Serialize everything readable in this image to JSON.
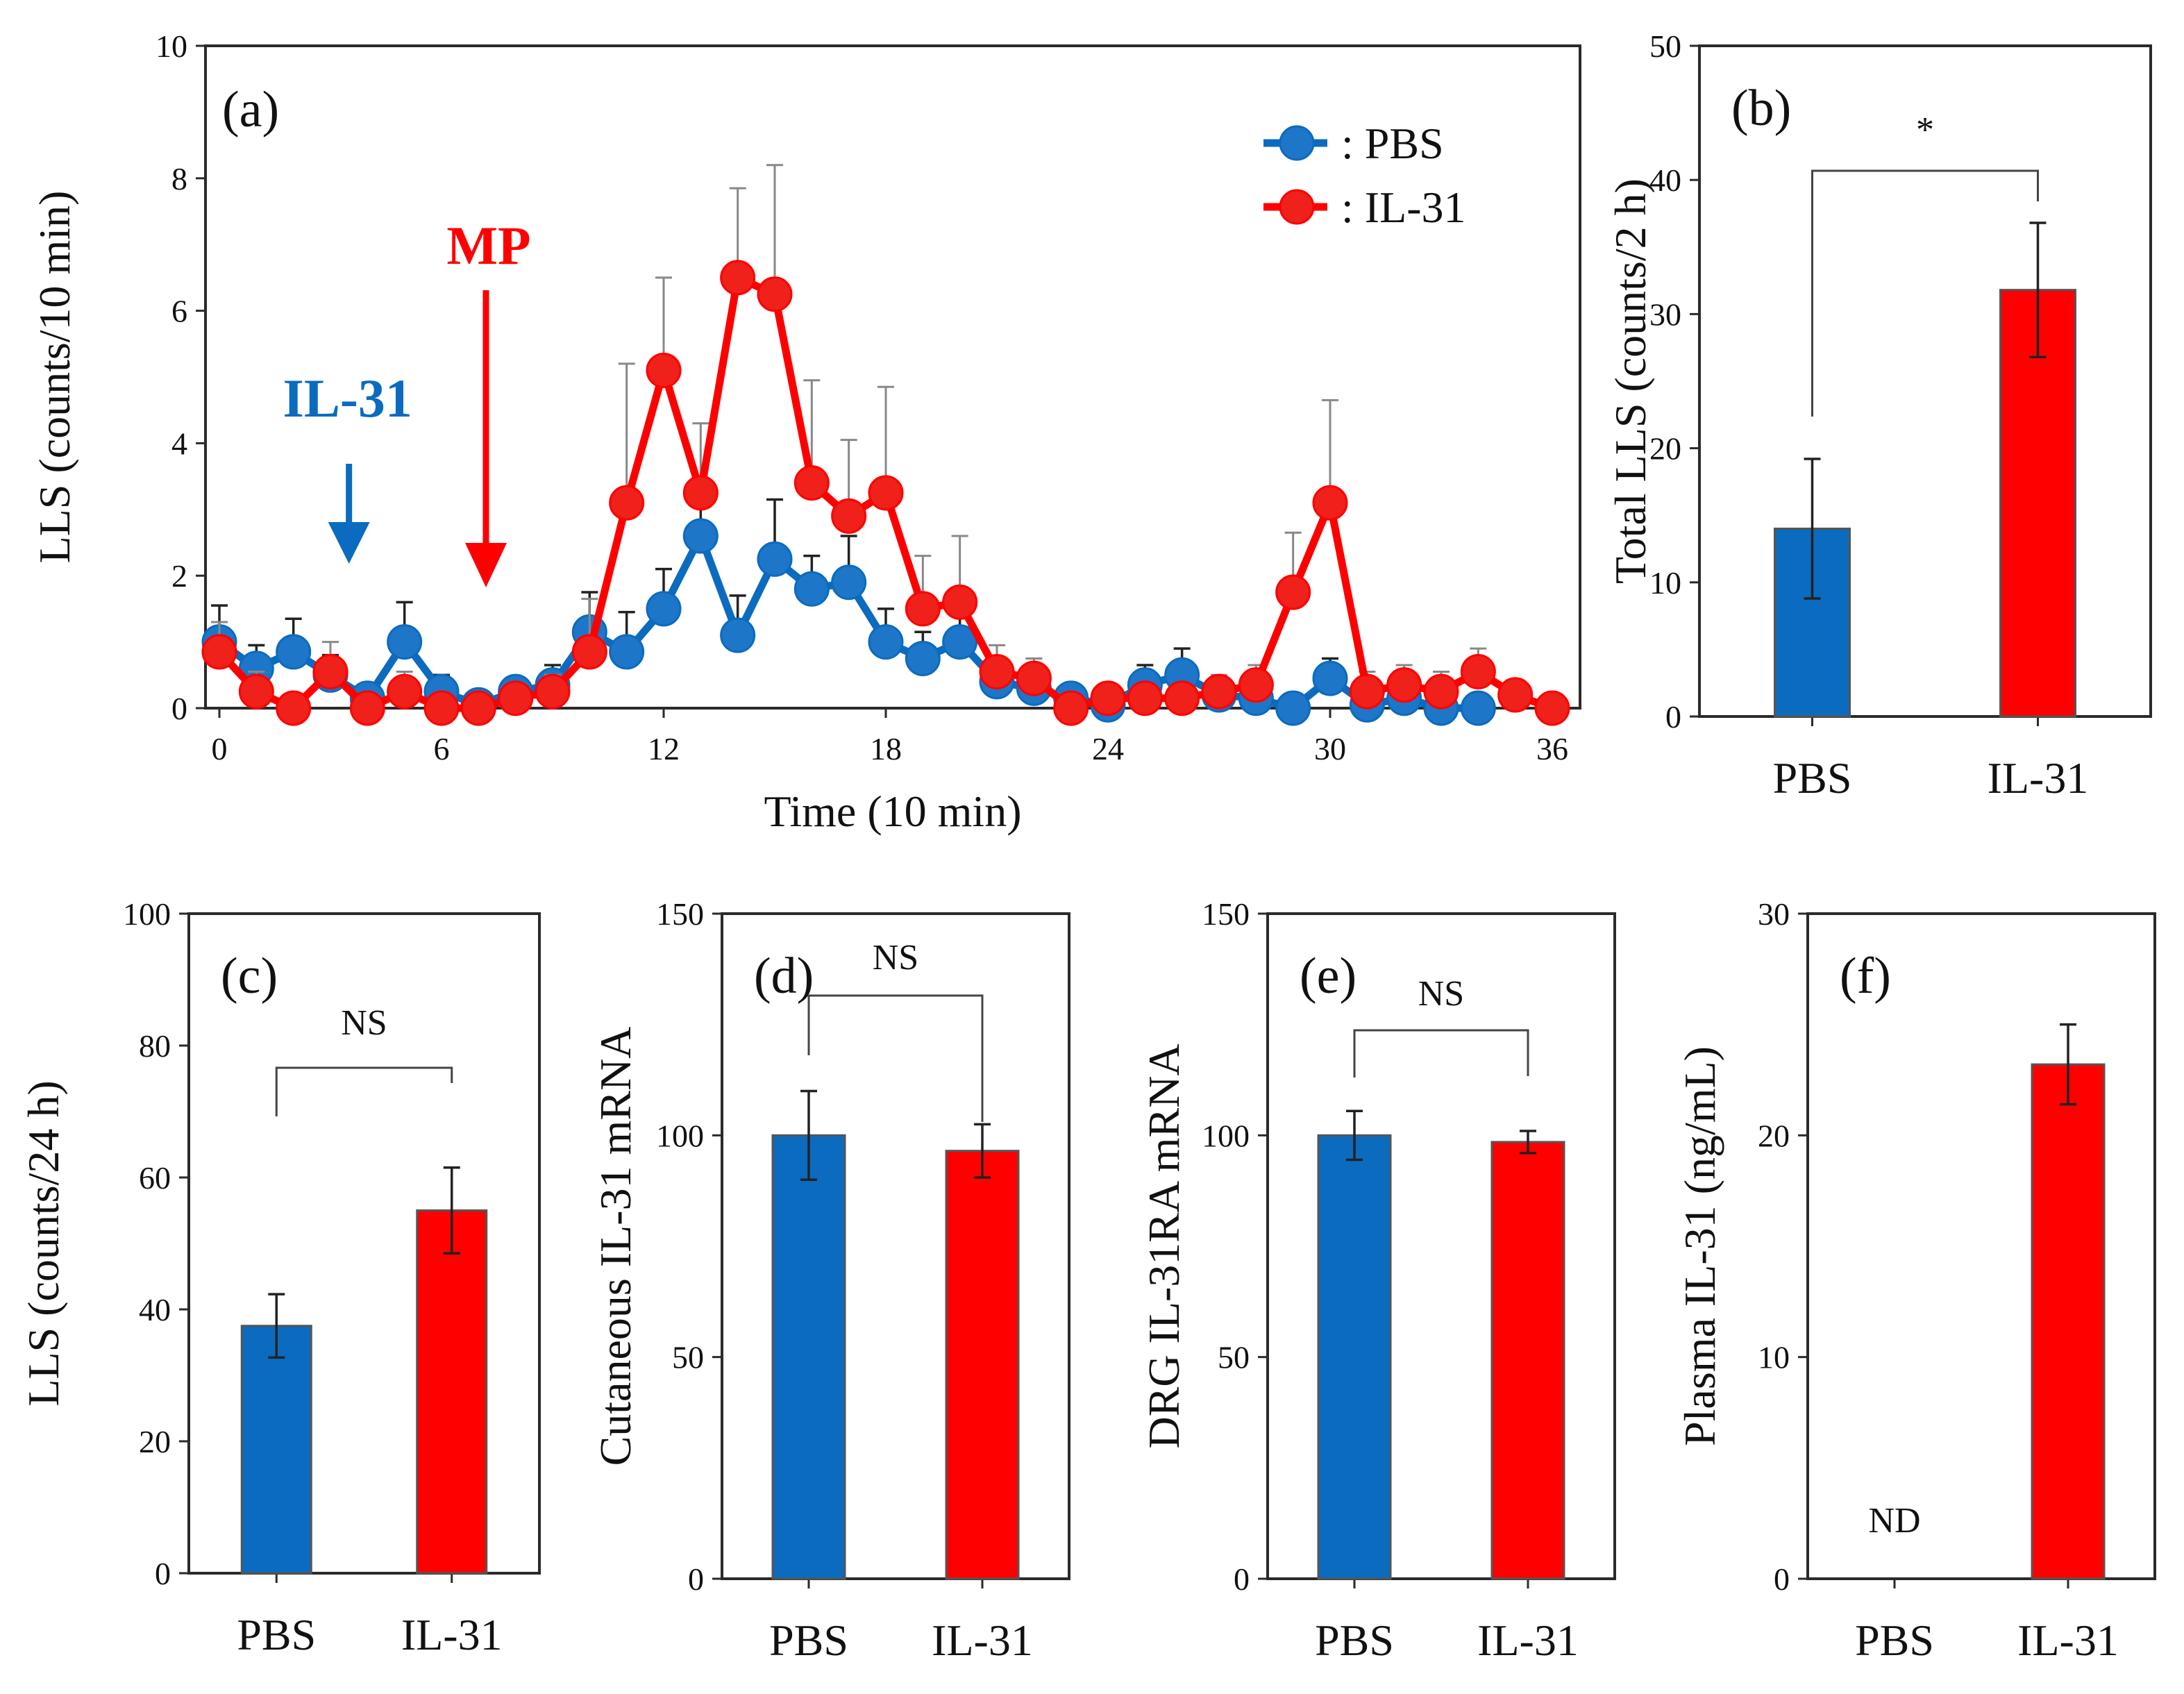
{
  "colors": {
    "pbs": "#0b6bbf",
    "il31": "#ff0000",
    "pbs_marker": "#1d76c8",
    "il31_marker": "#f0201a"
  },
  "chart_data": [
    {
      "id": "a",
      "type": "line",
      "panel_label": "(a)",
      "xlabel": "Time (10 min)",
      "ylabel": "LLS (counts/10 min)",
      "xlim": [
        0,
        36
      ],
      "ylim": [
        0,
        10
      ],
      "xticks": [
        0,
        6,
        12,
        18,
        24,
        30,
        36
      ],
      "yticks": [
        0,
        2,
        4,
        6,
        8,
        10
      ],
      "legend": {
        "placement": "top-right",
        "entries": [
          ": PBS",
          ": IL-31"
        ]
      },
      "annotations": [
        {
          "text": "IL-31",
          "x": 3.5,
          "color": "#0b6bbf"
        },
        {
          "text": "MP",
          "x": 7.2,
          "color": "#ff0000"
        }
      ],
      "series": [
        {
          "name": "PBS",
          "x": [
            0,
            1,
            2,
            3,
            4,
            5,
            6,
            7,
            8,
            9,
            10,
            11,
            12,
            13,
            14,
            15,
            16,
            17,
            18,
            19,
            20,
            21,
            22,
            23,
            24,
            25,
            26,
            27,
            28,
            29,
            30,
            31,
            32,
            33,
            34
          ],
          "values": [
            1.0,
            0.6,
            0.85,
            0.5,
            0.15,
            1.0,
            0.25,
            0.05,
            0.25,
            0.35,
            1.15,
            0.85,
            1.5,
            2.6,
            1.1,
            2.25,
            1.8,
            1.9,
            1.0,
            0.75,
            1.0,
            0.4,
            0.3,
            0.15,
            0.05,
            0.35,
            0.5,
            0.2,
            0.15,
            0.0,
            0.45,
            0.05,
            0.15,
            0.0,
            0.0
          ],
          "errors": [
            0.55,
            0.35,
            0.5,
            0.3,
            0.2,
            0.6,
            0.25,
            0.1,
            0.2,
            0.3,
            0.6,
            0.6,
            0.6,
            0.8,
            0.6,
            0.9,
            0.5,
            0.7,
            0.5,
            0.4,
            0.5,
            0.3,
            0.25,
            0.15,
            0.1,
            0.3,
            0.4,
            0.2,
            0.2,
            0.05,
            0.3,
            0.1,
            0.2,
            0.05,
            0.05
          ]
        },
        {
          "name": "IL-31",
          "x": [
            0,
            1,
            2,
            3,
            4,
            5,
            6,
            7,
            8,
            9,
            10,
            11,
            12,
            13,
            14,
            15,
            16,
            17,
            18,
            19,
            20,
            21,
            22,
            23,
            24,
            25,
            26,
            27,
            28,
            29,
            30,
            31,
            32,
            33,
            34,
            35,
            36
          ],
          "values": [
            0.85,
            0.25,
            0.0,
            0.55,
            0.0,
            0.25,
            0.0,
            0.0,
            0.15,
            0.25,
            0.85,
            3.1,
            5.1,
            3.25,
            6.5,
            6.25,
            3.4,
            2.9,
            3.25,
            1.5,
            1.6,
            0.55,
            0.45,
            0.0,
            0.15,
            0.15,
            0.15,
            0.25,
            0.35,
            1.75,
            3.1,
            0.25,
            0.35,
            0.25,
            0.55,
            0.2,
            0.0
          ],
          "errors": [
            0.45,
            0.3,
            0.1,
            0.45,
            0.1,
            0.3,
            0.1,
            0.1,
            0.2,
            0.25,
            0.8,
            2.1,
            1.4,
            1.05,
            1.35,
            1.95,
            1.55,
            1.15,
            1.6,
            0.8,
            1.0,
            0.4,
            0.3,
            0.1,
            0.2,
            0.2,
            0.2,
            0.25,
            0.3,
            0.9,
            1.55,
            0.3,
            0.3,
            0.3,
            0.35,
            0.2,
            0.1
          ]
        }
      ]
    },
    {
      "id": "b",
      "type": "bar",
      "panel_label": "(b)",
      "ylabel": "Total LLS (counts/2 h)",
      "categories": [
        "PBS",
        "IL-31"
      ],
      "values": [
        14.0,
        31.8
      ],
      "errors": [
        5.2,
        5.0
      ],
      "ylim": [
        0,
        50
      ],
      "yticks": [
        0,
        10,
        20,
        30,
        40,
        50
      ],
      "significance": "*"
    },
    {
      "id": "c",
      "type": "bar",
      "panel_label": "(c)",
      "ylabel": "LLS (counts/24 h)",
      "categories": [
        "PBS",
        "IL-31"
      ],
      "values": [
        37.5,
        55.0
      ],
      "errors": [
        4.8,
        6.5
      ],
      "ylim": [
        0,
        100
      ],
      "yticks": [
        0,
        20,
        40,
        60,
        80,
        100
      ],
      "significance": "NS"
    },
    {
      "id": "d",
      "type": "bar",
      "panel_label": "(d)",
      "ylabel": "Cutaneous IL-31 mRNA",
      "categories": [
        "PBS",
        "IL-31"
      ],
      "values": [
        100,
        96.5
      ],
      "errors": [
        10.0,
        6.0
      ],
      "ylim": [
        0,
        150
      ],
      "yticks": [
        0,
        50,
        100,
        150
      ],
      "significance": "NS"
    },
    {
      "id": "e",
      "type": "bar",
      "panel_label": "(e)",
      "ylabel": "DRG IL-31RA mRNA",
      "categories": [
        "PBS",
        "IL-31"
      ],
      "values": [
        100,
        98.5
      ],
      "errors": [
        5.5,
        2.5
      ],
      "ylim": [
        0,
        150
      ],
      "yticks": [
        0,
        50,
        100,
        150
      ],
      "significance": "NS"
    },
    {
      "id": "f",
      "type": "bar",
      "panel_label": "(f)",
      "ylabel": "Plasma IL-31 (ng/mL)",
      "categories": [
        "PBS",
        "IL-31"
      ],
      "values": [
        null,
        23.2
      ],
      "errors": [
        null,
        1.8
      ],
      "ylim": [
        0,
        30
      ],
      "yticks": [
        0,
        10,
        20,
        30
      ],
      "missing_label": "ND"
    }
  ]
}
